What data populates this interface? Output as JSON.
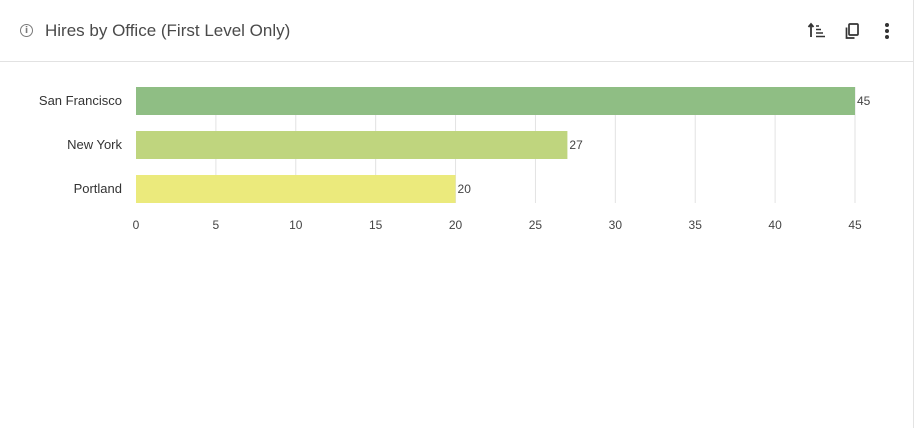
{
  "header": {
    "title": "Hires by Office (First Level Only)",
    "info_icon": "info-icon",
    "actions": [
      {
        "name": "sort-icon"
      },
      {
        "name": "copy-icon"
      },
      {
        "name": "more-vertical-icon"
      }
    ]
  },
  "chart_data": {
    "type": "bar",
    "orientation": "horizontal",
    "categories": [
      "San Francisco",
      "New York",
      "Portland"
    ],
    "values": [
      45,
      27,
      20
    ],
    "colors": [
      "#8fbe84",
      "#bfd57e",
      "#ebea7c"
    ],
    "xlim": [
      0,
      45
    ],
    "xticks": [
      0,
      5,
      10,
      15,
      20,
      25,
      30,
      35,
      40,
      45
    ],
    "grid": true,
    "data_labels": true
  }
}
